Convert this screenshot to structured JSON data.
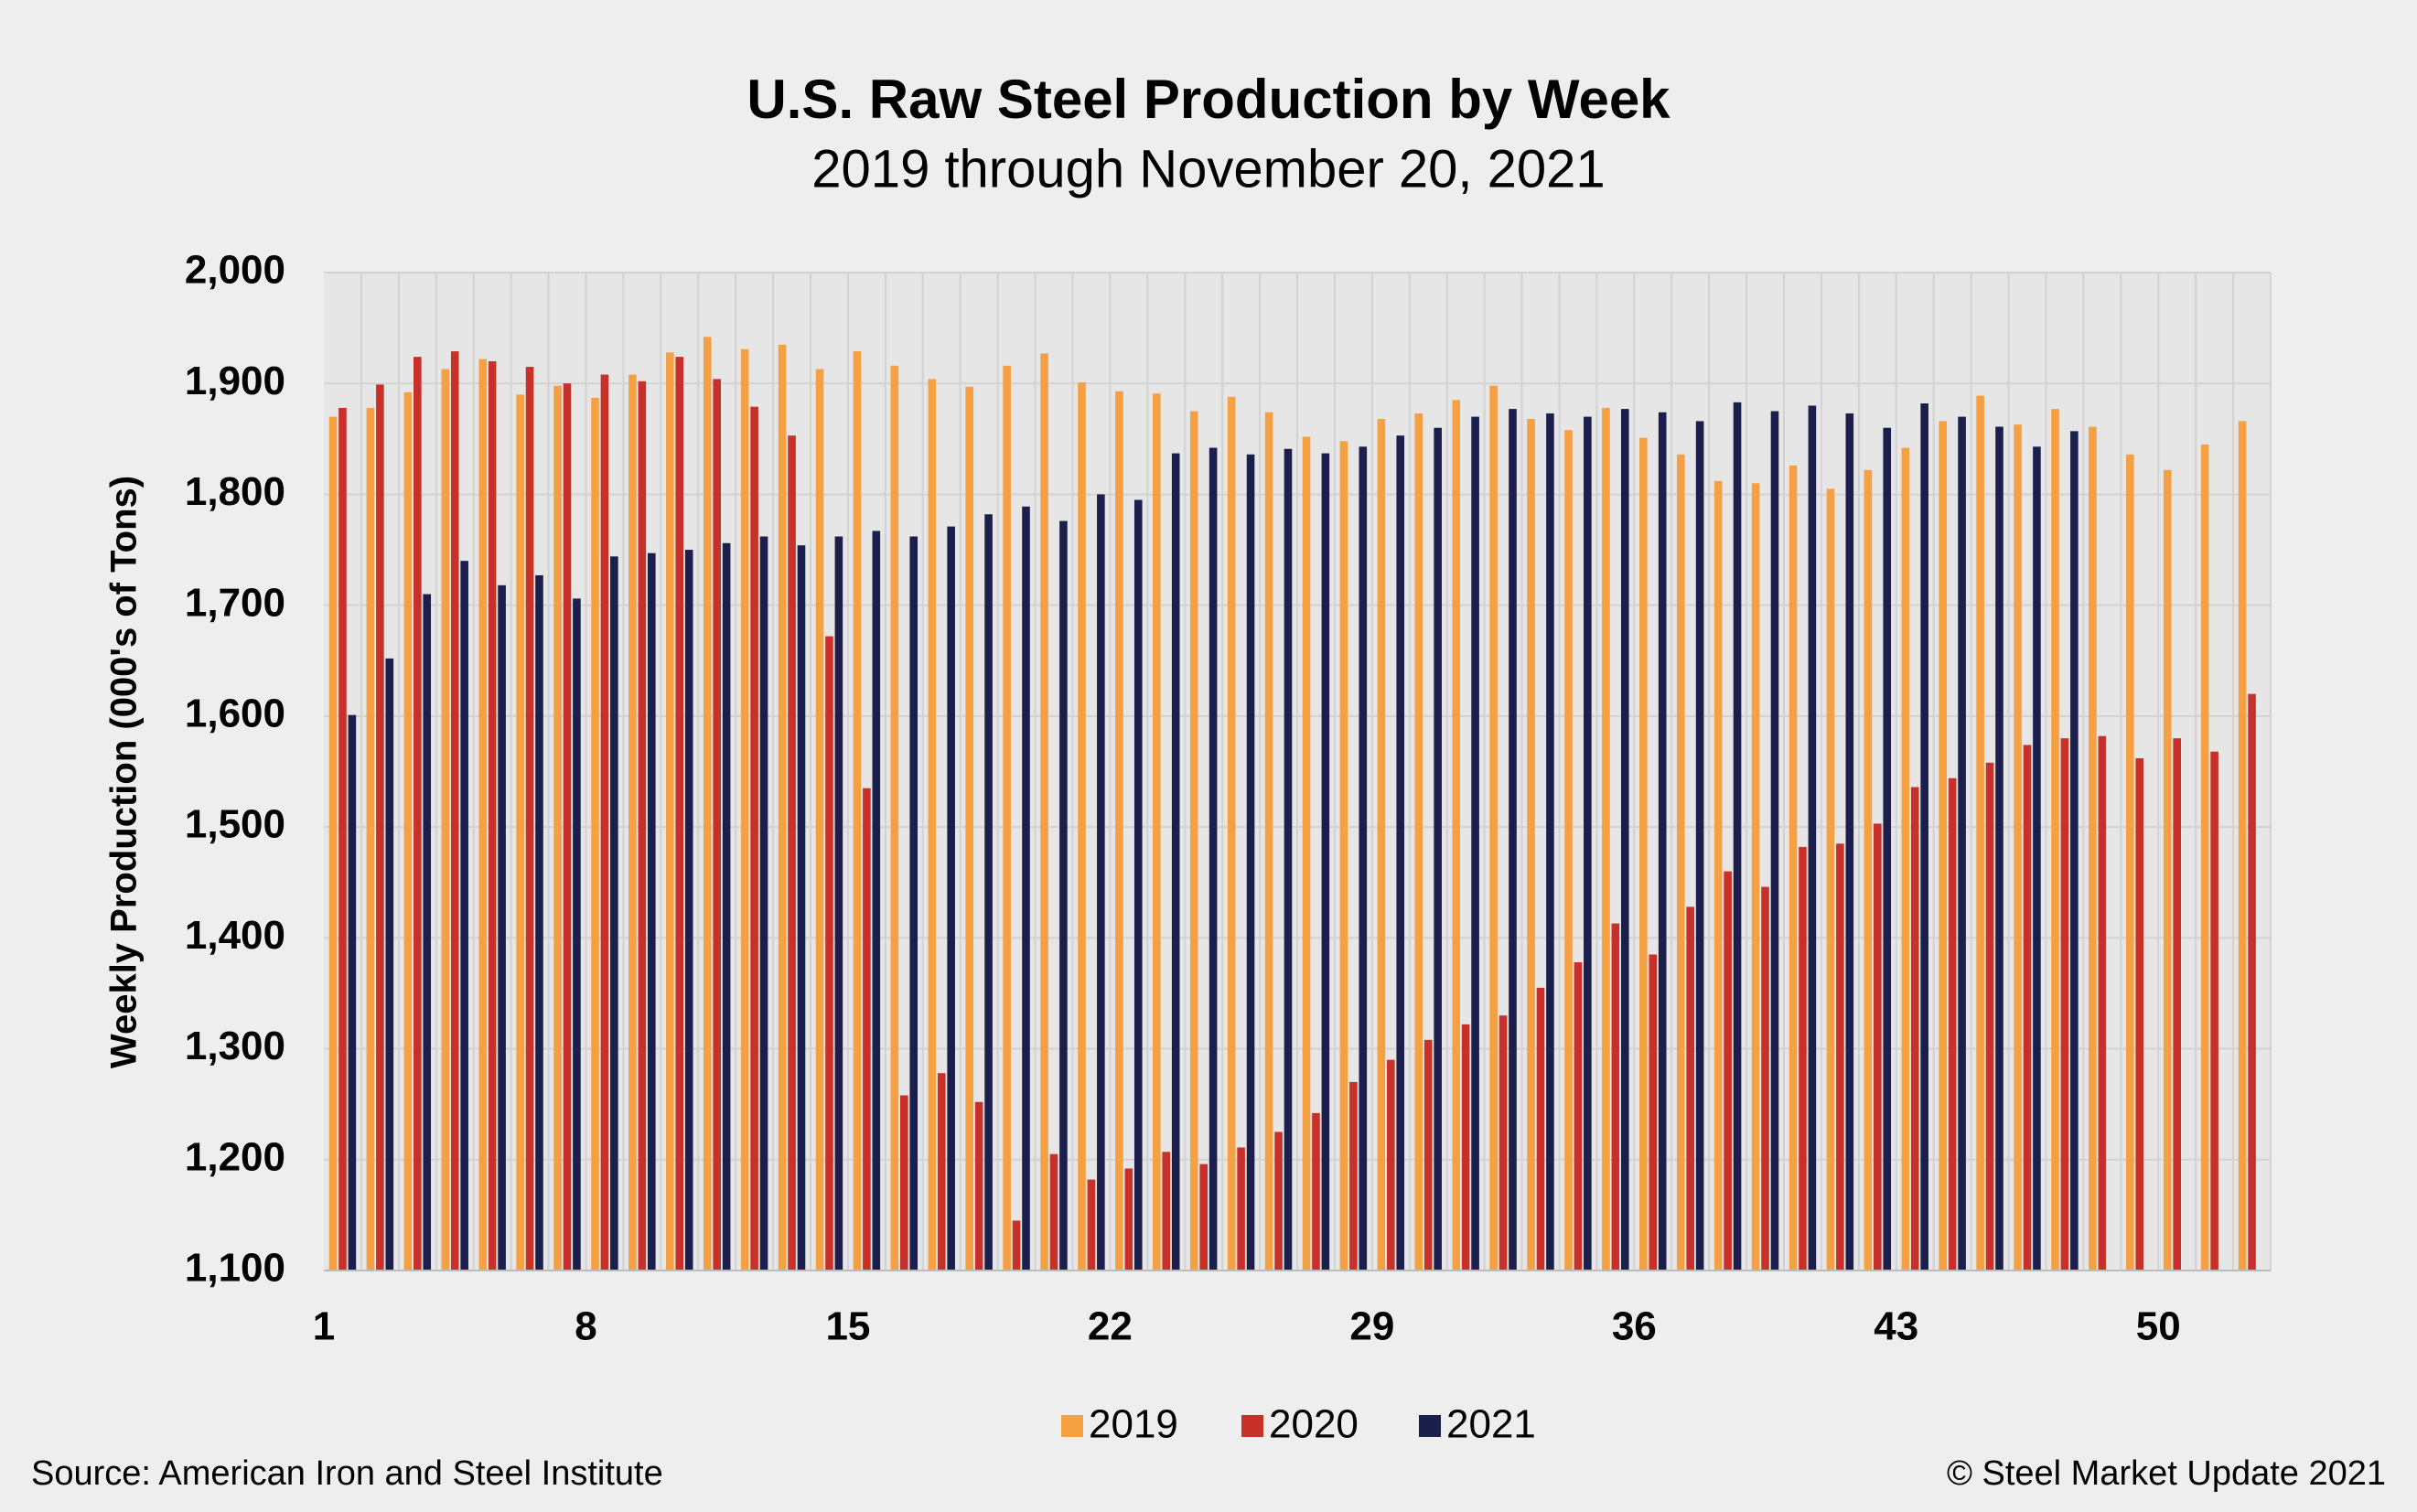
{
  "chart_data": {
    "type": "bar",
    "title": "U.S. Raw Steel Production by Week",
    "subtitle": "2019 through November 20, 2021",
    "y_label": "Weekly Production (000's of Tons)",
    "source": "Source: American Iron and Steel Institute",
    "credit": "© Steel Market Update 2021",
    "categories": [
      1,
      null,
      null,
      null,
      null,
      null,
      null,
      8,
      null,
      null,
      null,
      null,
      null,
      null,
      15,
      null,
      null,
      null,
      null,
      null,
      null,
      22,
      null,
      null,
      null,
      null,
      null,
      null,
      29,
      null,
      null,
      null,
      null,
      null,
      null,
      36,
      null,
      null,
      null,
      null,
      null,
      null,
      43,
      null,
      null,
      null,
      null,
      null,
      null,
      50,
      null,
      null
    ],
    "series": [
      {
        "name": "2019",
        "color": "#f4a043",
        "values": [
          1870,
          1878,
          1892,
          1913,
          1922,
          1890,
          1898,
          1887,
          1908,
          1928,
          1942,
          1931,
          1935,
          1913,
          1929,
          1916,
          1904,
          1897,
          1916,
          1927,
          1901,
          1893,
          1891,
          1875,
          1888,
          1874,
          1852,
          1848,
          1868,
          1873,
          1885,
          1898,
          1868,
          1858,
          1878,
          1851,
          1836,
          1812,
          1810,
          1826,
          1805,
          1822,
          1842,
          1866,
          1889,
          1863,
          1877,
          1861,
          1836,
          1822,
          1845,
          1866
        ]
      },
      {
        "name": "2020",
        "color": "#c8302a",
        "values": [
          1878,
          1899,
          1924,
          1929,
          1920,
          1915,
          1900,
          1908,
          1902,
          1924,
          1904,
          1879,
          1853,
          1672,
          1535,
          1258,
          1278,
          1252,
          1145,
          1205,
          1182,
          1192,
          1207,
          1196,
          1211,
          1225,
          1242,
          1270,
          1290,
          1308,
          1322,
          1330,
          1355,
          1378,
          1413,
          1385,
          1428,
          1460,
          1446,
          1482,
          1485,
          1503,
          1536,
          1544,
          1558,
          1574,
          1580,
          1582,
          1562,
          1580,
          1568,
          1620
        ]
      },
      {
        "name": "2021",
        "color": "#1b1f4b",
        "values": [
          1601,
          1652,
          1710,
          1740,
          1718,
          1727,
          1706,
          1744,
          1747,
          1750,
          1756,
          1762,
          1754,
          1762,
          1767,
          1762,
          1771,
          1782,
          1789,
          1776,
          1800,
          1795,
          1837,
          1842,
          1836,
          1841,
          1837,
          1843,
          1853,
          1860,
          1870,
          1877,
          1873,
          1870,
          1877,
          1874,
          1866,
          1883,
          1875,
          1880,
          1873,
          1860,
          1882,
          1870,
          1861,
          1843,
          1857,
          null,
          null,
          null,
          null,
          null
        ]
      }
    ],
    "ylim": [
      1100,
      2000
    ],
    "yticks": [
      {
        "value": 1100,
        "label": "1,100"
      },
      {
        "value": 1200,
        "label": "1,200"
      },
      {
        "value": 1300,
        "label": "1,300"
      },
      {
        "value": 1400,
        "label": "1,400"
      },
      {
        "value": 1500,
        "label": "1,500"
      },
      {
        "value": 1600,
        "label": "1,600"
      },
      {
        "value": 1700,
        "label": "1,700"
      },
      {
        "value": 1800,
        "label": "1,800"
      },
      {
        "value": 1900,
        "label": "1,900"
      },
      {
        "value": 2000,
        "label": "2,000"
      }
    ],
    "grid": true,
    "legend": "bottom"
  }
}
